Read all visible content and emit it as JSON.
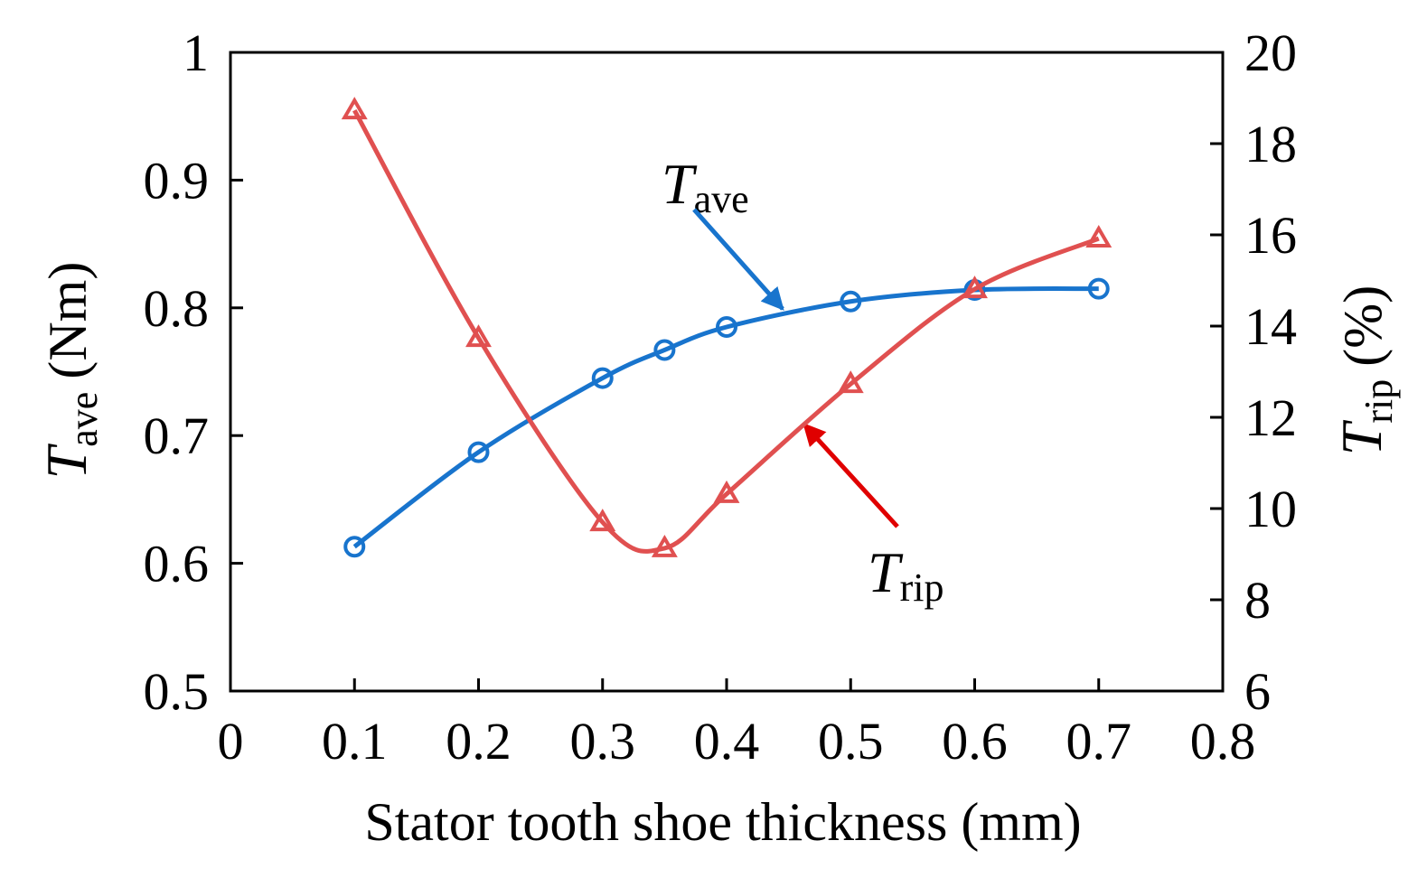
{
  "chart_data": {
    "type": "line",
    "xlabel": "Stator tooth shoe thickness (mm)",
    "ylabel": {
      "main": "T",
      "sub": "ave",
      "unit": "(Nm)"
    },
    "y2label": {
      "main": "T",
      "sub": "rip",
      "unit": "(%)"
    },
    "x": [
      0.1,
      0.2,
      0.3,
      0.35,
      0.4,
      0.5,
      0.6,
      0.7
    ],
    "series": [
      {
        "name": "T",
        "subscript": "ave",
        "color": "#1874cd",
        "marker": "circle",
        "values": [
          0.613,
          0.687,
          0.745,
          0.767,
          0.785,
          0.805,
          0.814,
          0.815
        ]
      },
      {
        "name": "T",
        "subscript": "rip",
        "color": "#e05050",
        "marker": "triangle",
        "axis": "y2",
        "values": [
          18.73,
          13.74,
          9.7,
          9.13,
          10.32,
          12.73,
          14.81,
          15.92
        ]
      }
    ],
    "xlim": [
      0,
      0.8
    ],
    "xticks": [
      0,
      0.1,
      0.2,
      0.3,
      0.4,
      0.5,
      0.6,
      0.7,
      0.8
    ],
    "ylim": [
      0.5,
      1
    ],
    "yticks": [
      0.5,
      0.6,
      0.7,
      0.8,
      0.9,
      1
    ],
    "y2lim": [
      6,
      20
    ],
    "y2ticks": [
      6,
      8,
      10,
      12,
      14,
      16,
      18,
      20
    ],
    "grid": false
  }
}
